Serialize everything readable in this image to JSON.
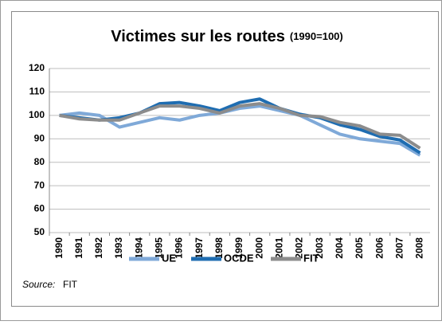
{
  "chart_data": {
    "type": "line",
    "title": "Victimes sur les routes",
    "subtitle": "(1990=100)",
    "categories": [
      "1990",
      "1991",
      "1992",
      "1993",
      "1994",
      "1995",
      "1996",
      "1997",
      "1998",
      "1999",
      "2000",
      "2001",
      "2002",
      "2003",
      "2004",
      "2005",
      "2006",
      "2007",
      "2008"
    ],
    "series": [
      {
        "name": "UE",
        "color": "#7fa9d8",
        "values": [
          100,
          101,
          100,
          95,
          97,
          99,
          98,
          100,
          101,
          103,
          104,
          102,
          100,
          96,
          92,
          90,
          89,
          88,
          83
        ]
      },
      {
        "name": "OCDE",
        "color": "#1f6db1",
        "values": [
          100,
          99,
          98,
          99,
          101,
          105,
          105.5,
          104,
          102,
          105.5,
          107,
          103,
          100.5,
          99,
          96,
          94,
          91,
          89.5,
          84
        ]
      },
      {
        "name": "FIT",
        "color": "#8c8c8c",
        "values": [
          100,
          98.5,
          98,
          98,
          101,
          104,
          104,
          103,
          101,
          104,
          105,
          103,
          100,
          99.5,
          97,
          95.5,
          92,
          91.5,
          86
        ]
      }
    ],
    "ylim": [
      50,
      120
    ],
    "yticks": [
      50,
      60,
      70,
      80,
      90,
      100,
      110,
      120
    ],
    "grid": true,
    "source_label": "Source:",
    "source": "FIT",
    "legend": "bottom"
  }
}
